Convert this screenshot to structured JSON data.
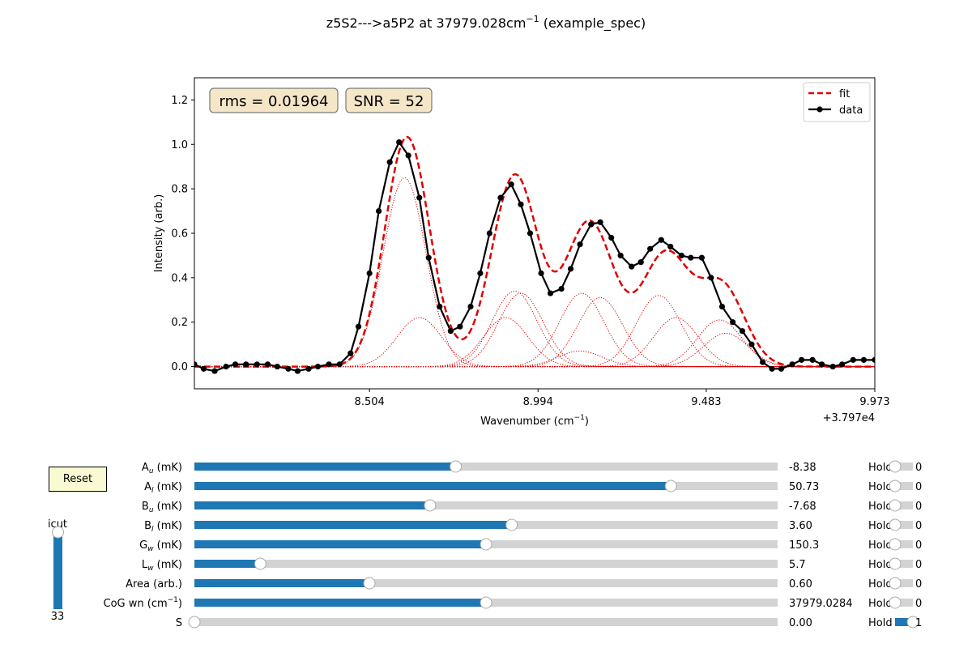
{
  "title_main": "z5S2--->a5P2 at 37979.028cm",
  "title_sup": "−1",
  "title_tail": " (example_spec)",
  "chart_data": {
    "type": "line",
    "xlabel_main": "Wavenumber (cm",
    "xlabel_sup": "−1",
    "xlabel_tail": ")",
    "ylabel": "Intensity (arb.)",
    "x_offset_label": "+3.797e4",
    "xlim": [
      7.995,
      9.973
    ],
    "ylim": [
      -0.1,
      1.3
    ],
    "xticks": [
      8.504,
      8.994,
      9.483,
      9.973
    ],
    "xtick_labels": [
      "8.504",
      "8.994",
      "9.483",
      "9.973"
    ],
    "yticks": [
      0.0,
      0.2,
      0.4,
      0.6,
      0.8,
      1.0,
      1.2
    ],
    "ytick_labels": [
      "0.0",
      "0.2",
      "0.4",
      "0.6",
      "0.8",
      "1.0",
      "1.2"
    ],
    "legend_position": "top-right",
    "legend": [
      {
        "name": "fit",
        "color": "#e00000",
        "style": "dashed"
      },
      {
        "name": "data",
        "color": "#000000",
        "style": "solid-marker"
      }
    ],
    "annotations": [
      {
        "text": "rms = 0.01964"
      },
      {
        "text": "SNR = 52"
      }
    ],
    "series": [
      {
        "name": "data",
        "color": "#000000",
        "x": [
          7.995,
          8.022,
          8.054,
          8.087,
          8.114,
          8.145,
          8.177,
          8.208,
          8.236,
          8.268,
          8.295,
          8.327,
          8.354,
          8.386,
          8.417,
          8.449,
          8.472,
          8.504,
          8.531,
          8.563,
          8.59,
          8.617,
          8.649,
          8.676,
          8.708,
          8.74,
          8.767,
          8.798,
          8.826,
          8.853,
          8.885,
          8.916,
          8.944,
          8.971,
          9.003,
          9.03,
          9.062,
          9.089,
          9.116,
          9.148,
          9.175,
          9.207,
          9.234,
          9.266,
          9.293,
          9.32,
          9.352,
          9.379,
          9.411,
          9.438,
          9.47,
          9.497,
          9.529,
          9.56,
          9.588,
          9.615,
          9.647,
          9.674,
          9.701,
          9.733,
          9.76,
          9.792,
          9.819,
          9.851,
          9.878,
          9.91,
          9.941,
          9.973
        ],
        "y": [
          0.01,
          -0.01,
          -0.02,
          0.0,
          0.01,
          0.01,
          0.01,
          0.01,
          0.0,
          -0.01,
          -0.02,
          -0.01,
          0.0,
          0.01,
          0.01,
          0.06,
          0.18,
          0.42,
          0.7,
          0.92,
          1.01,
          0.95,
          0.76,
          0.49,
          0.27,
          0.16,
          0.18,
          0.27,
          0.42,
          0.6,
          0.76,
          0.82,
          0.73,
          0.6,
          0.42,
          0.33,
          0.35,
          0.44,
          0.55,
          0.64,
          0.65,
          0.58,
          0.5,
          0.45,
          0.47,
          0.53,
          0.57,
          0.54,
          0.5,
          0.49,
          0.49,
          0.4,
          0.27,
          0.2,
          0.16,
          0.1,
          0.02,
          -0.01,
          -0.01,
          0.01,
          0.03,
          0.03,
          0.01,
          0.0,
          0.01,
          0.03,
          0.03,
          0.03
        ]
      },
      {
        "name": "fit",
        "color": "#e00000",
        "components": [
          {
            "center": 8.606,
            "amp": 0.85,
            "width": 0.062
          },
          {
            "center": 8.649,
            "amp": 0.22,
            "width": 0.065
          },
          {
            "center": 8.926,
            "amp": 0.34,
            "width": 0.065
          },
          {
            "center": 8.944,
            "amp": 0.33,
            "width": 0.065
          },
          {
            "center": 8.9,
            "amp": 0.22,
            "width": 0.065
          },
          {
            "center": 9.121,
            "amp": 0.33,
            "width": 0.065
          },
          {
            "center": 9.175,
            "amp": 0.31,
            "width": 0.065
          },
          {
            "center": 9.116,
            "amp": 0.07,
            "width": 0.065
          },
          {
            "center": 9.345,
            "amp": 0.32,
            "width": 0.065
          },
          {
            "center": 9.395,
            "amp": 0.22,
            "width": 0.065
          },
          {
            "center": 9.522,
            "amp": 0.21,
            "width": 0.065
          },
          {
            "center": 9.54,
            "amp": 0.15,
            "width": 0.065
          }
        ]
      }
    ]
  },
  "controls": {
    "reset_label": "Reset",
    "icut": {
      "label": "icut",
      "value": "33",
      "fraction": 1.0
    },
    "sliders": [
      {
        "main": "A",
        "sub": "u",
        "tail": " (mK)",
        "value": "-8.38",
        "fraction": 0.448,
        "hold": "0",
        "hold_fraction": 0.0
      },
      {
        "main": "A",
        "sub": "l",
        "tail": " (mK)",
        "value": "50.73",
        "fraction": 0.817,
        "hold": "0",
        "hold_fraction": 0.0
      },
      {
        "main": "B",
        "sub": "u",
        "tail": " (mK)",
        "value": "-7.68",
        "fraction": 0.404,
        "hold": "0",
        "hold_fraction": 0.0
      },
      {
        "main": "B",
        "sub": "l",
        "tail": " (mK)",
        "value": "3.60",
        "fraction": 0.544,
        "hold": "0",
        "hold_fraction": 0.0
      },
      {
        "main": "G",
        "sub": "w",
        "tail": " (mK)",
        "value": "150.3",
        "fraction": 0.5,
        "hold": "0",
        "hold_fraction": 0.0
      },
      {
        "main": "L",
        "sub": "w",
        "tail": " (mK)",
        "value": "5.7",
        "fraction": 0.113,
        "hold": "0",
        "hold_fraction": 0.0
      },
      {
        "main": "Area (arb.)",
        "sub": "",
        "tail": "",
        "value": "0.60",
        "fraction": 0.3,
        "hold": "0",
        "hold_fraction": 0.0
      },
      {
        "main": "CoG wn (cm",
        "sub": "",
        "sup": "−1",
        "tail": ")",
        "value": "37979.0284",
        "fraction": 0.5,
        "hold": "0",
        "hold_fraction": 0.0
      },
      {
        "main": "S",
        "sub": "",
        "tail": "",
        "value": "0.00",
        "fraction": 0.0,
        "hold": "1",
        "hold_fraction": 1.0
      }
    ],
    "hold_label": "Hold",
    "colors": {
      "fill": "#1f77b4",
      "track": "#d3d3d3",
      "knob": "#ffffff"
    }
  }
}
